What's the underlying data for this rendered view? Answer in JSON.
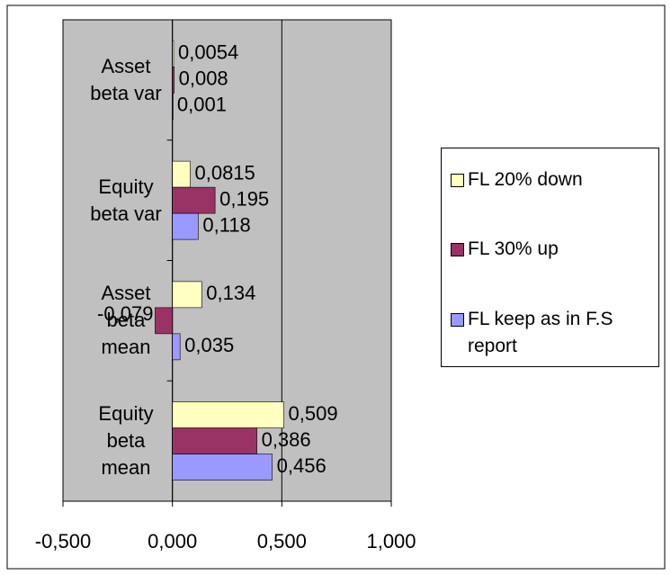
{
  "chart_data": {
    "type": "bar",
    "orientation": "horizontal",
    "categories": [
      "Asset\nbeta var",
      "Equity\nbeta var",
      "Asset\nbeta\nmean",
      "Equity\nbeta\nmean"
    ],
    "series": [
      {
        "name": "FL 20% down",
        "color": "#ffffc0",
        "values": [
          0.0054,
          0.0815,
          0.134,
          0.509
        ],
        "value_labels": [
          "0,0054",
          "0,0815",
          "0,134",
          "0,509"
        ]
      },
      {
        "name": "FL 30% up",
        "color": "#993366",
        "values": [
          0.008,
          0.195,
          -0.079,
          0.386
        ],
        "value_labels": [
          "0,008",
          "0,195",
          "-0,079",
          "0,386"
        ]
      },
      {
        "name": "FL keep as in F.S report",
        "color": "#9999ff",
        "values": [
          0.001,
          0.118,
          0.035,
          0.456
        ],
        "value_labels": [
          "0,001",
          "0,118",
          "0,035",
          "0,456"
        ]
      }
    ],
    "xlim": [
      -0.5,
      1.0
    ],
    "xticks": [
      {
        "value": -0.5,
        "label": "-0,500"
      },
      {
        "value": 0,
        "label": "0,000"
      },
      {
        "value": 0.5,
        "label": "0,500"
      },
      {
        "value": 1.0,
        "label": "1,000"
      }
    ],
    "grid": true,
    "plot_background": "#c0c0c0",
    "legend": "right"
  }
}
